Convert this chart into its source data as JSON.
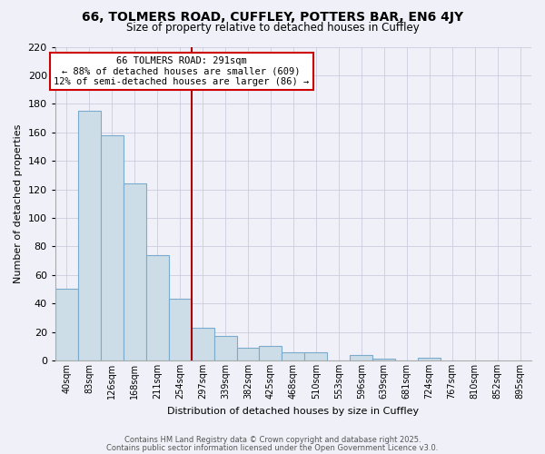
{
  "title": "66, TOLMERS ROAD, CUFFLEY, POTTERS BAR, EN6 4JY",
  "subtitle": "Size of property relative to detached houses in Cuffley",
  "xlabel": "Distribution of detached houses by size in Cuffley",
  "ylabel": "Number of detached properties",
  "bar_values": [
    50,
    175,
    158,
    124,
    74,
    43,
    23,
    17,
    9,
    10,
    6,
    6,
    0,
    4,
    1,
    0,
    2
  ],
  "bin_labels": [
    "40sqm",
    "83sqm",
    "126sqm",
    "168sqm",
    "211sqm",
    "254sqm",
    "297sqm",
    "339sqm",
    "382sqm",
    "425sqm",
    "468sqm",
    "510sqm",
    "553sqm",
    "596sqm",
    "639sqm",
    "681sqm",
    "724sqm",
    "767sqm",
    "810sqm",
    "852sqm",
    "895sqm"
  ],
  "bar_color": "#ccdde8",
  "bar_edge_color": "#7aaacc",
  "vline_color": "#aa0000",
  "annotation_title": "66 TOLMERS ROAD: 291sqm",
  "annotation_line1": "← 88% of detached houses are smaller (609)",
  "annotation_line2": "12% of semi-detached houses are larger (86) →",
  "annotation_box_color": "white",
  "annotation_box_edge": "#cc0000",
  "ylim": [
    0,
    220
  ],
  "yticks": [
    0,
    20,
    40,
    60,
    80,
    100,
    120,
    140,
    160,
    180,
    200,
    220
  ],
  "footer1": "Contains HM Land Registry data © Crown copyright and database right 2025.",
  "footer2": "Contains public sector information licensed under the Open Government Licence v3.0.",
  "bg_color": "#f0f0f8",
  "grid_color": "#ccccdd",
  "title_fontsize": 10,
  "subtitle_fontsize": 8.5,
  "ylabel_fontsize": 8,
  "xlabel_fontsize": 8,
  "ytick_fontsize": 8,
  "xtick_fontsize": 7,
  "footer_fontsize": 6,
  "ann_fontsize": 7.5
}
